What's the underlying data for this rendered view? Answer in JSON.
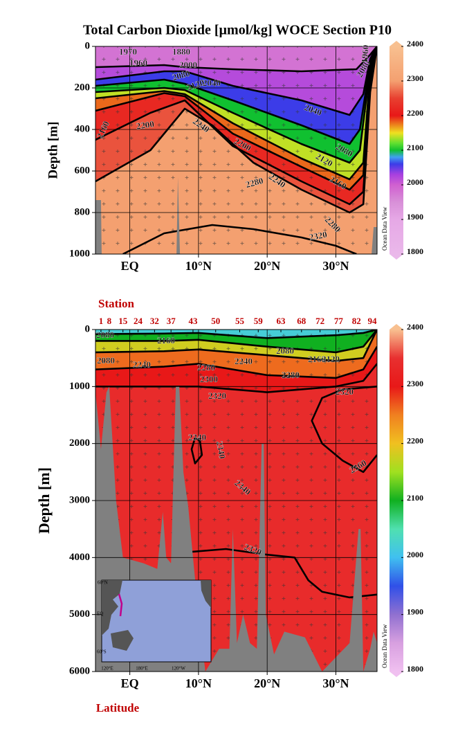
{
  "chart_data": [
    {
      "type": "contour",
      "title": "Total Carbon Dioxide [µmol/kg]  WOCE Section P10",
      "ylabel": "Depth [m]",
      "xlim": [
        -5,
        36
      ],
      "xticks": [
        {
          "value": 0,
          "label": "EQ"
        },
        {
          "value": 10,
          "label": "10°N"
        },
        {
          "value": 20,
          "label": "20°N"
        },
        {
          "value": 30,
          "label": "30°N"
        }
      ],
      "ylim": [
        0,
        1000
      ],
      "yticks": [
        0,
        200,
        400,
        600,
        800,
        1000
      ],
      "y_inverted": true,
      "grid": true,
      "watermark": "Ocean Data View",
      "colorbar": {
        "lim": [
          1800,
          2400
        ],
        "ticks": [
          1800,
          1900,
          2000,
          2100,
          2200,
          2300,
          2400
        ],
        "stops": [
          {
            "value": 1800,
            "color": "#eab8ea"
          },
          {
            "value": 1900,
            "color": "#e6a8e6"
          },
          {
            "value": 1950,
            "color": "#d890d8"
          },
          {
            "value": 2000,
            "color": "#d060d0"
          },
          {
            "value": 2030,
            "color": "#a840e0"
          },
          {
            "value": 2060,
            "color": "#3c3ce8"
          },
          {
            "value": 2080,
            "color": "#40a0f0"
          },
          {
            "value": 2100,
            "color": "#10c030"
          },
          {
            "value": 2120,
            "color": "#60e030"
          },
          {
            "value": 2150,
            "color": "#f0e020"
          },
          {
            "value": 2200,
            "color": "#e81818"
          },
          {
            "value": 2250,
            "color": "#e84030"
          },
          {
            "value": 2300,
            "color": "#f4a070"
          },
          {
            "value": 2400,
            "color": "#f8c090"
          }
        ]
      },
      "contours": [
        {
          "level": 2280,
          "x": [
            -5,
            3,
            8,
            12,
            18,
            25,
            32,
            34,
            35,
            36
          ],
          "depth": [
            650,
            500,
            300,
            380,
            560,
            690,
            800,
            760,
            220,
            0
          ]
        },
        {
          "level": 2240,
          "x": [
            -5,
            3,
            8,
            15,
            25,
            32,
            34,
            35,
            36
          ],
          "depth": [
            450,
            320,
            260,
            480,
            650,
            760,
            700,
            180,
            0
          ]
        },
        {
          "level": 2200,
          "x": [
            -5,
            5,
            8,
            15,
            25,
            32,
            34,
            35,
            36
          ],
          "depth": [
            310,
            225,
            240,
            420,
            580,
            690,
            620,
            150,
            0
          ]
        },
        {
          "level": 2160,
          "x": [
            -5,
            5,
            8,
            15,
            25,
            32,
            34,
            35,
            36
          ],
          "depth": [
            250,
            215,
            230,
            370,
            540,
            640,
            560,
            120,
            0
          ]
        },
        {
          "level": 2120,
          "x": [
            -5,
            5,
            8,
            15,
            25,
            32,
            33.5,
            35,
            36
          ],
          "depth": [
            220,
            200,
            210,
            320,
            470,
            560,
            500,
            100,
            0
          ]
        },
        {
          "level": 2080,
          "x": [
            -5,
            5,
            8,
            15,
            25,
            32,
            33.5,
            35,
            36
          ],
          "depth": [
            190,
            160,
            180,
            260,
            380,
            470,
            400,
            80,
            0
          ]
        },
        {
          "level": 2040,
          "x": [
            -5,
            5,
            8,
            15,
            25,
            32,
            34,
            35,
            36
          ],
          "depth": [
            160,
            120,
            120,
            190,
            260,
            330,
            230,
            60,
            0
          ]
        },
        {
          "level": 2000,
          "x": [
            -5,
            5,
            8,
            15,
            25,
            33,
            35,
            36
          ],
          "depth": [
            100,
            90,
            100,
            110,
            120,
            110,
            40,
            0
          ]
        },
        {
          "level": 2320,
          "x": [
            -1,
            5,
            12,
            18,
            25,
            30,
            33
          ],
          "depth": [
            1000,
            900,
            860,
            880,
            920,
            960,
            1000
          ]
        }
      ],
      "bathymetry": [
        {
          "x": [
            -5,
            -4.2,
            -4.1
          ],
          "depth": [
            740,
            740,
            1000
          ]
        },
        {
          "x": [
            6.8,
            7,
            7.3
          ],
          "depth": [
            1000,
            630,
            1000
          ]
        },
        {
          "x": [
            35.2,
            35.5,
            36
          ],
          "depth": [
            1000,
            870,
            870
          ]
        }
      ],
      "contour_labels": [
        1970,
        1960,
        1880,
        2000,
        2080,
        2120,
        2040,
        2040,
        2080,
        2120,
        2160,
        2200,
        2240,
        2240,
        2280,
        2320,
        2200,
        2160,
        2280,
        2080,
        1960
      ]
    },
    {
      "type": "contour",
      "ylabel": "Depth [m]",
      "xlabel": "Latitude",
      "xlim": [
        -5,
        36
      ],
      "xticks": [
        {
          "value": 0,
          "label": "EQ"
        },
        {
          "value": 10,
          "label": "10°N"
        },
        {
          "value": 20,
          "label": "20°N"
        },
        {
          "value": 30,
          "label": "30°N"
        }
      ],
      "ylim": [
        0,
        6000
      ],
      "yticks": [
        0,
        1000,
        2000,
        3000,
        4000,
        5000,
        6000
      ],
      "y_inverted": true,
      "grid": true,
      "watermark": "Ocean Data View",
      "stations": {
        "title": "Station",
        "labels": [
          1,
          8,
          15,
          24,
          32,
          37,
          43,
          50,
          55,
          59,
          63,
          68,
          72,
          77,
          82,
          94
        ],
        "x": [
          -4.2,
          -3,
          -1,
          1.2,
          3.6,
          6,
          9.2,
          12.5,
          16,
          18.7,
          22,
          25,
          27.7,
          30.4,
          33,
          35.3
        ]
      },
      "colorbar": {
        "lim": [
          1800,
          2400
        ],
        "ticks": [
          1800,
          1900,
          2000,
          2100,
          2200,
          2300,
          2400
        ],
        "stops": [
          {
            "value": 1800,
            "color": "#f0c0f0"
          },
          {
            "value": 1850,
            "color": "#d8a0e0"
          },
          {
            "value": 1900,
            "color": "#9070d0"
          },
          {
            "value": 1950,
            "color": "#3050e8"
          },
          {
            "value": 2000,
            "color": "#40c0f0"
          },
          {
            "value": 2050,
            "color": "#50e0b0"
          },
          {
            "value": 2100,
            "color": "#10b020"
          },
          {
            "value": 2150,
            "color": "#a0e020"
          },
          {
            "value": 2200,
            "color": "#f0c020"
          },
          {
            "value": 2250,
            "color": "#f08020"
          },
          {
            "value": 2300,
            "color": "#e81818"
          },
          {
            "value": 2350,
            "color": "#e83030"
          },
          {
            "value": 2400,
            "color": "#f8c090"
          }
        ]
      },
      "contours": [
        {
          "level": 2320,
          "x": [
            -5,
            5,
            10,
            20,
            30,
            34,
            36
          ],
          "depth": [
            1000,
            1000,
            1000,
            1100,
            1000,
            900,
            600
          ]
        },
        {
          "level": 2280,
          "x": [
            -5,
            5,
            10,
            20,
            30,
            34,
            36
          ],
          "depth": [
            700,
            650,
            600,
            800,
            850,
            700,
            300
          ]
        },
        {
          "level": 2200,
          "x": [
            -5,
            5,
            10,
            20,
            30,
            34,
            36
          ],
          "depth": [
            400,
            380,
            350,
            450,
            550,
            500,
            0
          ]
        },
        {
          "level": 2120,
          "x": [
            -5,
            5,
            10,
            20,
            30,
            34,
            36
          ],
          "depth": [
            200,
            200,
            180,
            300,
            400,
            300,
            0
          ]
        },
        {
          "level": 2040,
          "x": [
            -5,
            5,
            10,
            20,
            30,
            34,
            36
          ],
          "depth": [
            80,
            70,
            60,
            150,
            100,
            60,
            0
          ]
        },
        {
          "level": 2360,
          "x": [
            36,
            34,
            31,
            28,
            26.5,
            28,
            31,
            36
          ],
          "depth": [
            2200,
            2500,
            2300,
            2000,
            1600,
            1200,
            1050,
            1000
          ]
        },
        {
          "level": 2320,
          "x": [
            9,
            14,
            20,
            24,
            26,
            28,
            32,
            36
          ],
          "depth": [
            3900,
            3850,
            3950,
            4000,
            4400,
            4600,
            4700,
            4650
          ]
        },
        {
          "level": 2340,
          "x": [
            9.5,
            9,
            9.5,
            10.5,
            10.2,
            9.5
          ],
          "depth": [
            1900,
            2100,
            2350,
            2200,
            1950,
            1900
          ]
        }
      ],
      "bathymetry": [
        {
          "x": [
            -5,
            -5,
            -4.2,
            -3.4,
            -3,
            -2,
            -1,
            2,
            4,
            4.8,
            5.3,
            6,
            6.7,
            7.2,
            7.8,
            8.5,
            9.2,
            10,
            11,
            13,
            14.5,
            15,
            15.6,
            16.5,
            17.5,
            18.5,
            19.2,
            19.5,
            19.8,
            21,
            22.5,
            25.5,
            28,
            32,
            33.3,
            33.6,
            34,
            35,
            35.5,
            36,
            36
          ],
          "depth": [
            6000,
            1100,
            2100,
            1100,
            1000,
            3000,
            4000,
            4100,
            4200,
            3200,
            4000,
            4100,
            1000,
            1000,
            2500,
            3100,
            4000,
            5000,
            6000,
            5600,
            5600,
            3500,
            5500,
            5000,
            5500,
            5600,
            2000,
            2000,
            5000,
            5700,
            5300,
            5400,
            6000,
            5500,
            3500,
            3500,
            6000,
            5600,
            5300,
            5500,
            6000
          ]
        }
      ],
      "contour_labels": [
        2080,
        2160,
        2080,
        2240,
        2280,
        2300,
        2240,
        2080,
        2160,
        2120,
        2280,
        2320,
        2320,
        2340,
        2340,
        2340,
        2360,
        2320
      ],
      "inset": {
        "labels": [
          "60°N",
          "EQ",
          "60°S",
          "120°E",
          "180°E",
          "120°W"
        ]
      }
    }
  ]
}
